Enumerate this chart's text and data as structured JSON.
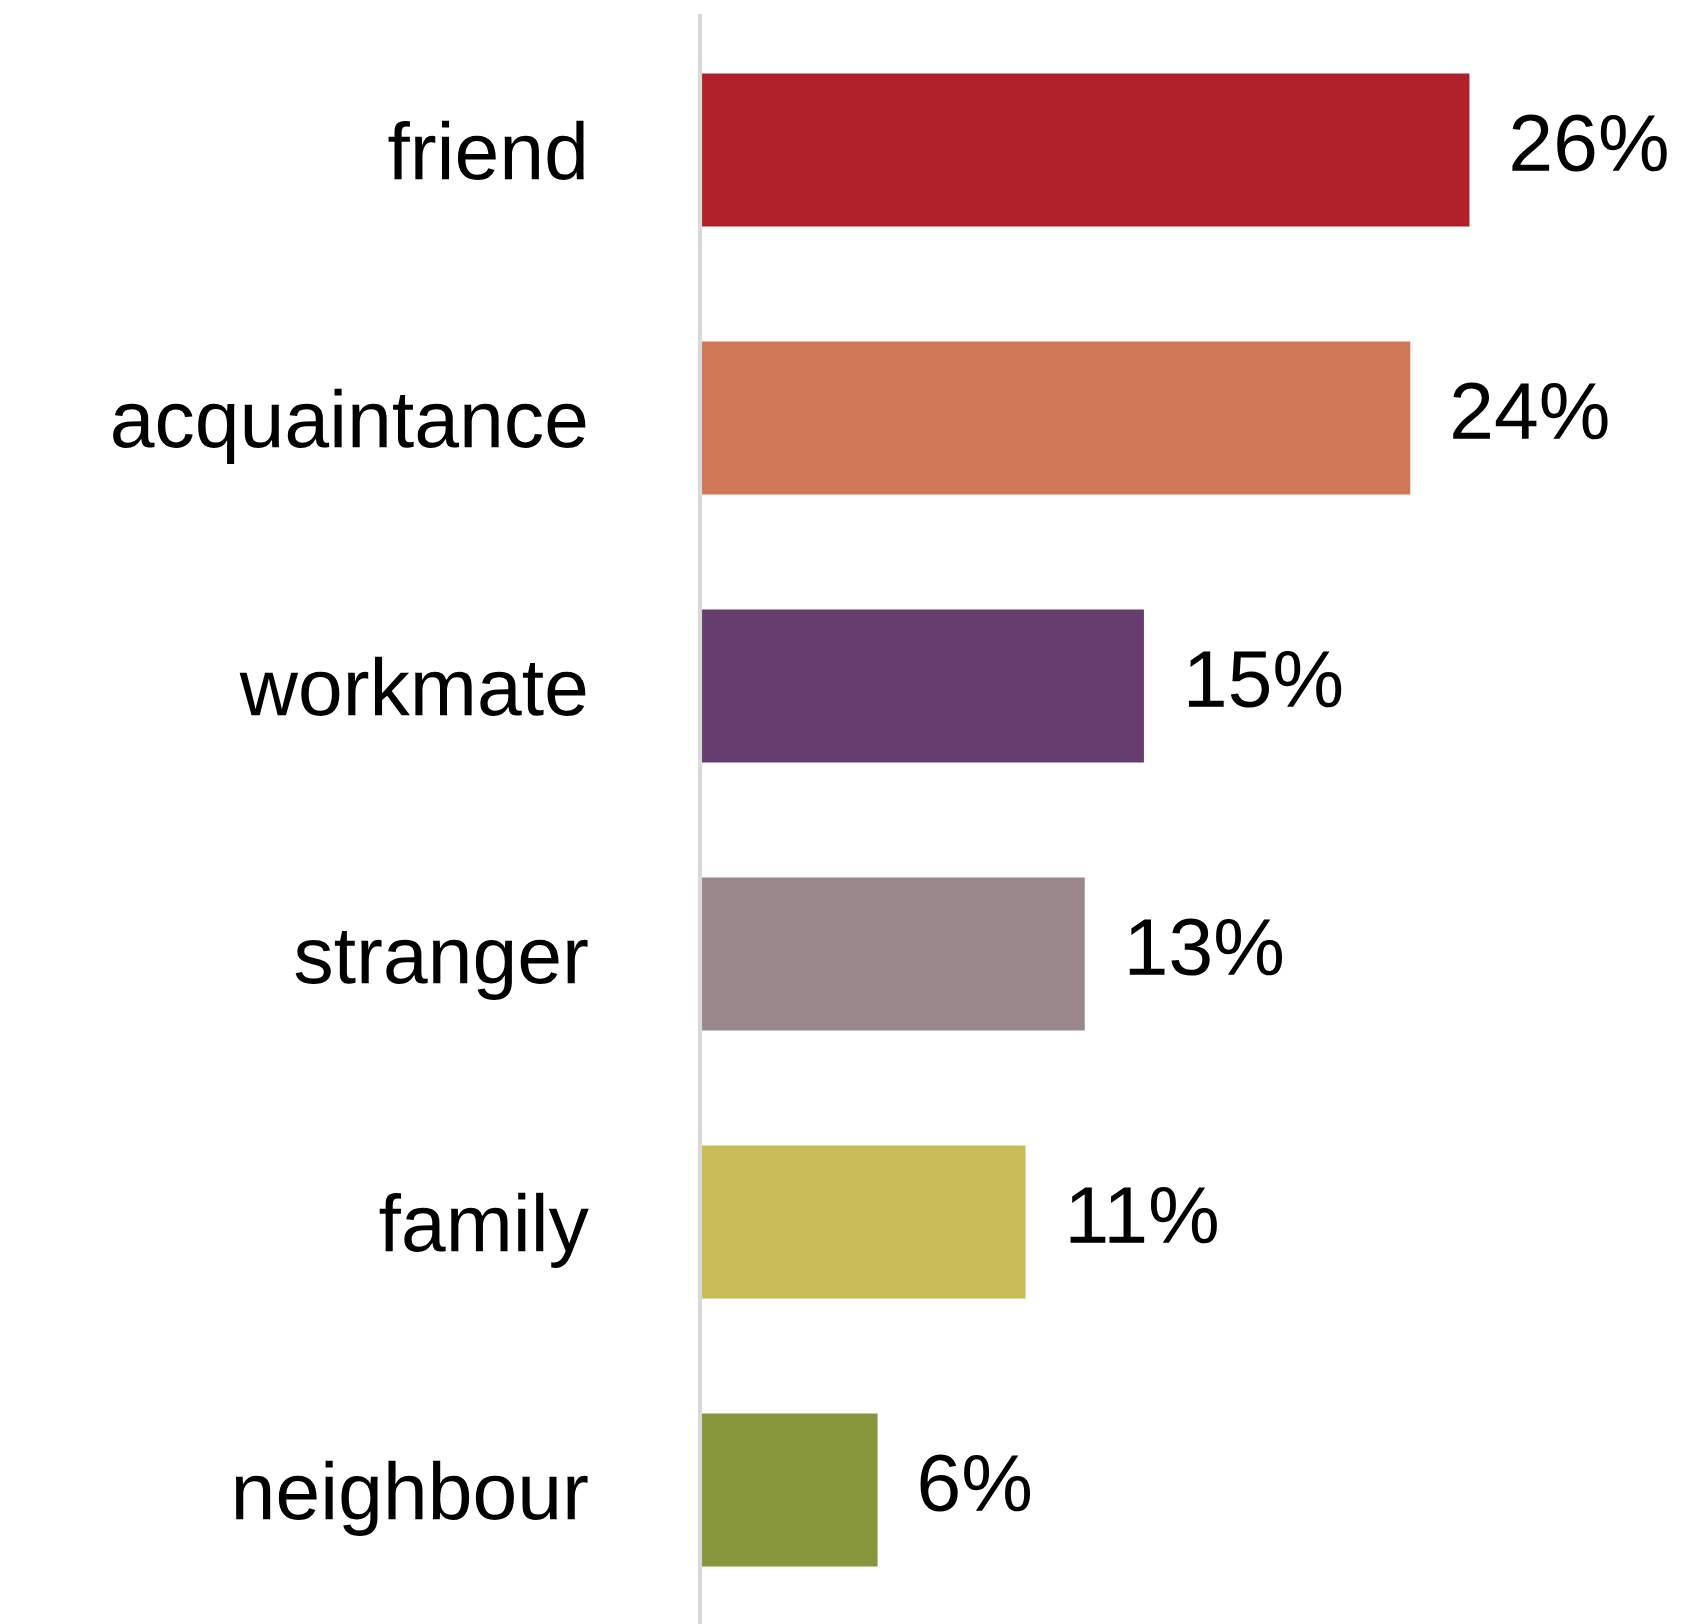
{
  "chart_data": {
    "type": "bar",
    "orientation": "horizontal",
    "categories": [
      "friend",
      "acquaintance",
      "workmate",
      "stranger",
      "family",
      "neighbour"
    ],
    "values": [
      26,
      24,
      15,
      13,
      11,
      6
    ],
    "colors": [
      "#b0212b",
      "#d07858",
      "#663d6e",
      "#99878b",
      "#c9bb55",
      "#87963b"
    ],
    "value_labels": [
      "26%",
      "24%",
      "15%",
      "13%",
      "11%",
      "6%"
    ],
    "grid": false,
    "legend": false
  }
}
